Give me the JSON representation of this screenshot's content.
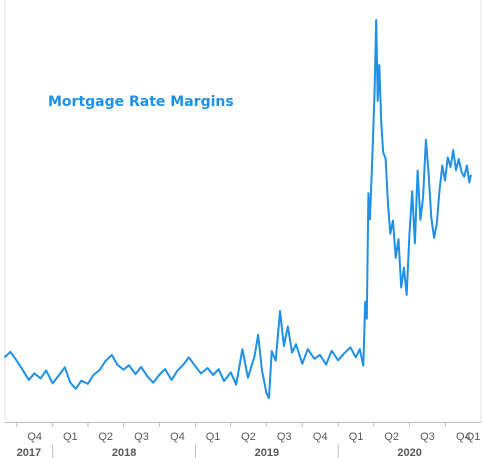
{
  "chart_data": {
    "type": "line",
    "title": "Mortgage Rate Margins",
    "xlabel": "",
    "ylabel": "",
    "grid": false,
    "legend": "none",
    "colors": {
      "line": "#1e90e8",
      "title": "#1e90e8",
      "axis": "#bfbfbf",
      "text": "#595959"
    },
    "x_range": [
      "2017-09-01",
      "2020-12-31"
    ],
    "y_range": [
      0,
      100
    ],
    "quarter_ticks": [
      "Q4",
      "Q1",
      "Q2",
      "Q3",
      "Q4",
      "Q1",
      "Q2",
      "Q3",
      "Q4",
      "Q1",
      "Q2",
      "Q3",
      "Q4",
      "Q1"
    ],
    "year_labels": [
      "2017",
      "2018",
      "2019",
      "2020"
    ],
    "series": [
      {
        "values": [
          [
            "2017-09-01",
            12.5
          ],
          [
            "2017-09-15",
            13.8
          ],
          [
            "2017-10-01",
            11.5
          ],
          [
            "2017-10-15",
            9.3
          ],
          [
            "2017-11-01",
            6.5
          ],
          [
            "2017-11-15",
            8.2
          ],
          [
            "2017-12-01",
            6.9
          ],
          [
            "2017-12-15",
            9.0
          ],
          [
            "2018-01-01",
            5.6
          ],
          [
            "2018-01-15",
            7.5
          ],
          [
            "2018-02-01",
            9.8
          ],
          [
            "2018-02-15",
            5.8
          ],
          [
            "2018-03-01",
            4.2
          ],
          [
            "2018-03-15",
            6.3
          ],
          [
            "2018-04-01",
            5.5
          ],
          [
            "2018-04-15",
            7.8
          ],
          [
            "2018-05-01",
            9.1
          ],
          [
            "2018-05-15",
            11.3
          ],
          [
            "2018-06-01",
            13.0
          ],
          [
            "2018-06-15",
            10.5
          ],
          [
            "2018-07-01",
            9.2
          ],
          [
            "2018-07-15",
            10.3
          ],
          [
            "2018-08-01",
            8.0
          ],
          [
            "2018-08-15",
            9.9
          ],
          [
            "2018-09-01",
            7.3
          ],
          [
            "2018-09-15",
            5.8
          ],
          [
            "2018-10-01",
            7.9
          ],
          [
            "2018-10-15",
            9.3
          ],
          [
            "2018-11-01",
            6.5
          ],
          [
            "2018-11-15",
            8.8
          ],
          [
            "2018-12-01",
            10.5
          ],
          [
            "2018-12-15",
            12.4
          ],
          [
            "2019-01-01",
            10.0
          ],
          [
            "2019-01-15",
            8.2
          ],
          [
            "2019-02-01",
            9.6
          ],
          [
            "2019-02-15",
            7.8
          ],
          [
            "2019-03-01",
            9.3
          ],
          [
            "2019-03-15",
            6.2
          ],
          [
            "2019-04-01",
            8.5
          ],
          [
            "2019-04-15",
            5.3
          ],
          [
            "2019-05-01",
            14.5
          ],
          [
            "2019-05-15",
            7.1
          ],
          [
            "2019-06-01",
            12.6
          ],
          [
            "2019-06-10",
            18.2
          ],
          [
            "2019-06-20",
            9.0
          ],
          [
            "2019-07-01",
            3.2
          ],
          [
            "2019-07-08",
            1.8
          ],
          [
            "2019-07-15",
            14.0
          ],
          [
            "2019-07-25",
            11.5
          ],
          [
            "2019-08-05",
            24.4
          ],
          [
            "2019-08-15",
            15.3
          ],
          [
            "2019-08-25",
            20.4
          ],
          [
            "2019-09-05",
            13.6
          ],
          [
            "2019-09-15",
            15.8
          ],
          [
            "2019-10-01",
            10.7
          ],
          [
            "2019-10-15",
            14.5
          ],
          [
            "2019-11-01",
            12.0
          ],
          [
            "2019-11-15",
            13.0
          ],
          [
            "2019-12-01",
            10.5
          ],
          [
            "2019-12-15",
            14.1
          ],
          [
            "2020-01-01",
            11.6
          ],
          [
            "2020-01-15",
            13.3
          ],
          [
            "2020-02-01",
            15.0
          ],
          [
            "2020-02-15",
            12.4
          ],
          [
            "2020-02-25",
            14.5
          ],
          [
            "2020-03-05",
            10.2
          ],
          [
            "2020-03-10",
            26.8
          ],
          [
            "2020-03-14",
            22.4
          ],
          [
            "2020-03-18",
            55.0
          ],
          [
            "2020-03-22",
            48.2
          ],
          [
            "2020-03-26",
            58.6
          ],
          [
            "2020-03-30",
            69.4
          ],
          [
            "2020-04-03",
            81.7
          ],
          [
            "2020-04-07",
            100.0
          ],
          [
            "2020-04-11",
            79.0
          ],
          [
            "2020-04-15",
            88.3
          ],
          [
            "2020-04-20",
            73.0
          ],
          [
            "2020-04-25",
            65.6
          ],
          [
            "2020-05-01",
            64.0
          ],
          [
            "2020-05-07",
            52.6
          ],
          [
            "2020-05-13",
            44.5
          ],
          [
            "2020-05-20",
            47.9
          ],
          [
            "2020-05-27",
            38.2
          ],
          [
            "2020-06-03",
            43.1
          ],
          [
            "2020-06-10",
            30.5
          ],
          [
            "2020-06-17",
            35.7
          ],
          [
            "2020-06-24",
            28.6
          ],
          [
            "2020-07-01",
            44.3
          ],
          [
            "2020-07-08",
            55.5
          ],
          [
            "2020-07-15",
            42.0
          ],
          [
            "2020-07-22",
            60.9
          ],
          [
            "2020-07-29",
            48.1
          ],
          [
            "2020-08-05",
            54.0
          ],
          [
            "2020-08-12",
            68.9
          ],
          [
            "2020-08-19",
            60.1
          ],
          [
            "2020-08-26",
            48.7
          ],
          [
            "2020-09-02",
            43.4
          ],
          [
            "2020-09-09",
            47.1
          ],
          [
            "2020-09-16",
            55.7
          ],
          [
            "2020-09-23",
            62.2
          ],
          [
            "2020-09-30",
            58.3
          ],
          [
            "2020-10-07",
            64.3
          ],
          [
            "2020-10-14",
            61.8
          ],
          [
            "2020-10-21",
            66.2
          ],
          [
            "2020-10-28",
            61.0
          ],
          [
            "2020-11-04",
            63.9
          ],
          [
            "2020-11-11",
            60.6
          ],
          [
            "2020-11-18",
            59.3
          ],
          [
            "2020-11-25",
            62.2
          ],
          [
            "2020-12-01",
            57.8
          ],
          [
            "2020-12-05",
            59.6
          ]
        ]
      }
    ]
  }
}
